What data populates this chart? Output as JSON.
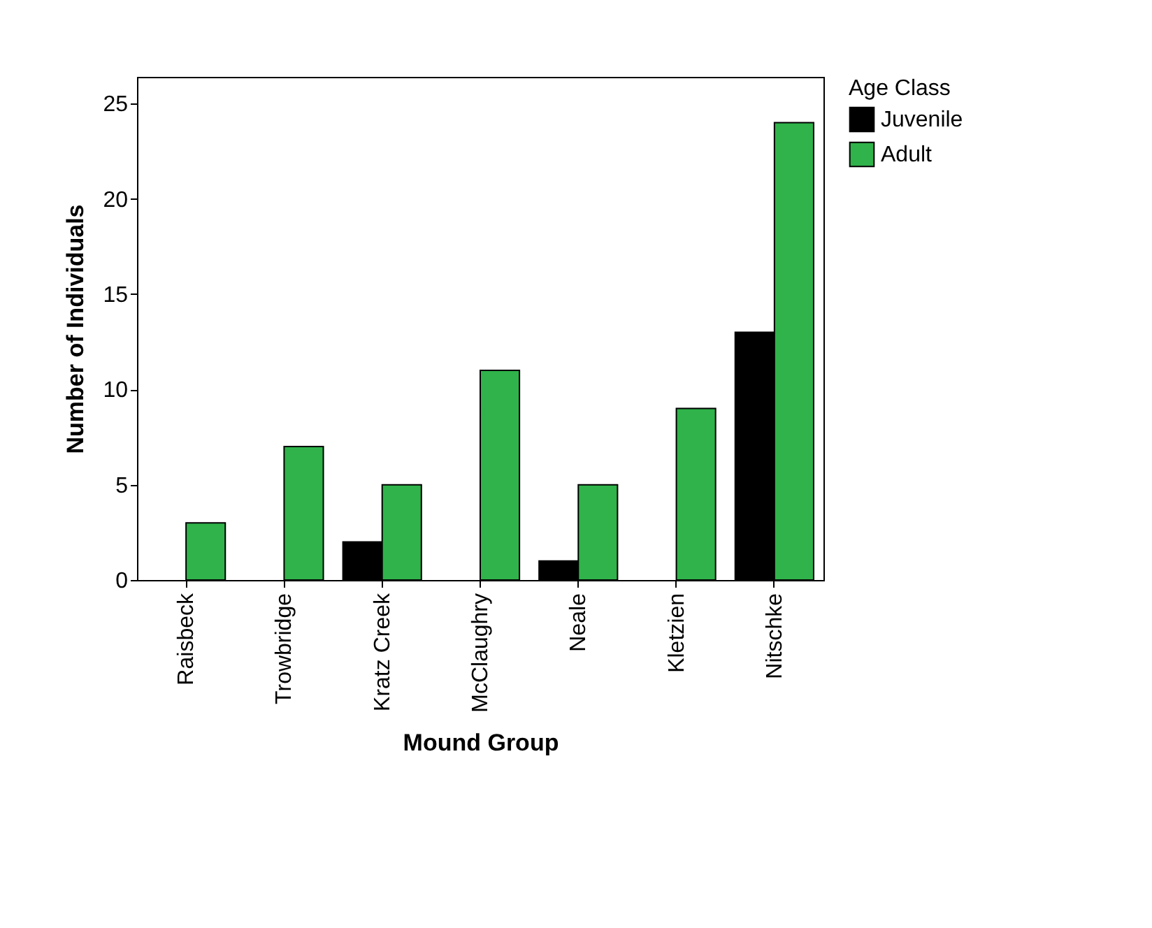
{
  "chart_data": {
    "type": "bar",
    "xlabel": "Mound Group",
    "ylabel": "Number of Individuals",
    "legend_title": "Age Class",
    "categories": [
      "Raisbeck",
      "Trowbridge",
      "Kratz Creek",
      "McClaughry",
      "Neale",
      "Kletzien",
      "Nitschke"
    ],
    "series": [
      {
        "name": "Juvenile",
        "color": "#000000",
        "values": [
          null,
          null,
          2,
          null,
          1,
          null,
          13
        ]
      },
      {
        "name": "Adult",
        "color": "#2fb34a",
        "values": [
          3,
          7,
          5,
          11,
          5,
          9,
          24
        ]
      }
    ],
    "ylim": [
      0,
      26.4
    ],
    "yticks": [
      0,
      5,
      10,
      15,
      20,
      25
    ],
    "grid": false,
    "legend": "top right"
  }
}
